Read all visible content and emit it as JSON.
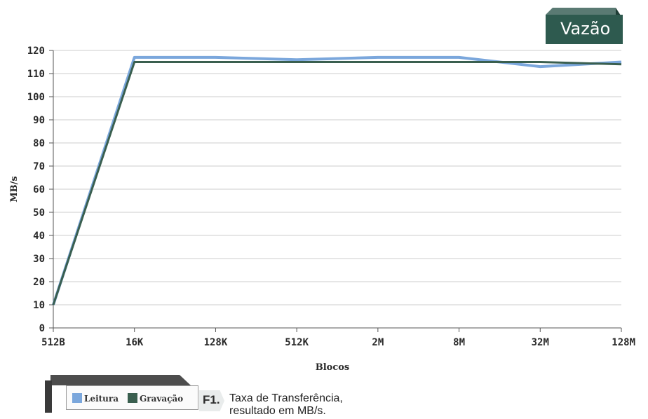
{
  "badge": {
    "text": "Vazão"
  },
  "legend": {
    "items": [
      "Leitura",
      "Gravação"
    ]
  },
  "caption": {
    "number": "F1.",
    "text": "Taxa de Transferência, resultado em MB/s."
  },
  "colors": {
    "leitura": "#7ba7dc",
    "gravacao": "#3a5f4f",
    "grid": "#cccccc",
    "axis": "#555555"
  },
  "chart_data": {
    "type": "line",
    "title": "",
    "xlabel": "Blocos",
    "ylabel": "MB/s",
    "ylim": [
      0,
      120
    ],
    "yticks": [
      0,
      10,
      20,
      30,
      40,
      50,
      60,
      70,
      80,
      90,
      100,
      110,
      120
    ],
    "x": [
      "512B",
      "16K",
      "128K",
      "512K",
      "2M",
      "8M",
      "32M",
      "128M"
    ],
    "grid": true,
    "legend_position": "bottom-left",
    "series": [
      {
        "name": "Leitura",
        "values": [
          10,
          117,
          117,
          116,
          117,
          117,
          113,
          115
        ]
      },
      {
        "name": "Gravação",
        "values": [
          10,
          115,
          115,
          115,
          115,
          115,
          115,
          114
        ]
      }
    ]
  }
}
